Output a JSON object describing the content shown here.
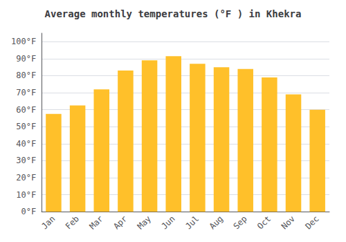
{
  "chart_data": {
    "type": "bar",
    "title": "Average monthly temperatures (°F ) in Khekra",
    "categories": [
      "Jan",
      "Feb",
      "Mar",
      "Apr",
      "May",
      "Jun",
      "Jul",
      "Aug",
      "Sep",
      "Oct",
      "Nov",
      "Dec"
    ],
    "values": [
      57.5,
      62.5,
      72.0,
      83.0,
      89.0,
      91.5,
      87.0,
      85.0,
      84.0,
      79.0,
      69.0,
      60.0
    ],
    "color": "#FFC02A",
    "ylim": [
      0,
      105
    ],
    "yticks": [
      {
        "value": 0,
        "label": "0°F"
      },
      {
        "value": 10,
        "label": "10°F"
      },
      {
        "value": 20,
        "label": "20°F"
      },
      {
        "value": 30,
        "label": "30°F"
      },
      {
        "value": 40,
        "label": "40°F"
      },
      {
        "value": 50,
        "label": "50°F"
      },
      {
        "value": 60,
        "label": "60°F"
      },
      {
        "value": 70,
        "label": "70°F"
      },
      {
        "value": 80,
        "label": "80°F"
      },
      {
        "value": 90,
        "label": "90°F"
      },
      {
        "value": 100,
        "label": "100°F"
      }
    ],
    "grid": true
  }
}
